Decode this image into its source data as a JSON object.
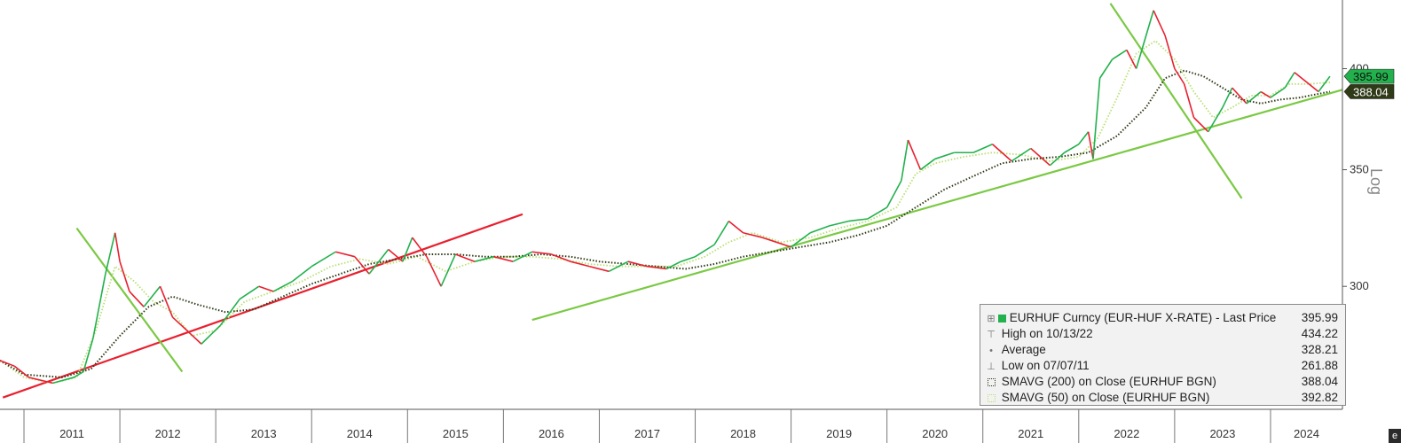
{
  "chart_data": {
    "type": "line",
    "title": "",
    "ticker": "EURHUF Curncy (EUR-HUF X-RATE)",
    "scale": "Log",
    "ylim": [
      255,
      438
    ],
    "y_ticks": [
      300,
      350,
      400
    ],
    "x_axis_years": [
      "2011",
      "2012",
      "2013",
      "2014",
      "2015",
      "2016",
      "2017",
      "2018",
      "2019",
      "2020",
      "2021",
      "2022",
      "2023",
      "2024"
    ],
    "x_range": [
      2010.75,
      2024.75
    ],
    "grid": false,
    "legend_position": "bottom-right",
    "series": [
      {
        "name": "EURHUF Curncy (EUR-HUF X-RATE) - Last Price",
        "color": "#22b14c",
        "down_color": "#e8202f",
        "x": [
          2010.75,
          2010.9,
          2011.05,
          2011.3,
          2011.52,
          2011.62,
          2011.72,
          2011.85,
          2011.95,
          2012.0,
          2012.1,
          2012.25,
          2012.42,
          2012.55,
          2012.7,
          2012.85,
          2013.05,
          2013.25,
          2013.45,
          2013.6,
          2013.8,
          2014.0,
          2014.25,
          2014.45,
          2014.6,
          2014.8,
          2014.95,
          2015.05,
          2015.2,
          2015.35,
          2015.5,
          2015.7,
          2015.9,
          2016.1,
          2016.3,
          2016.5,
          2016.7,
          2016.9,
          2017.1,
          2017.3,
          2017.5,
          2017.7,
          2017.85,
          2018.0,
          2018.2,
          2018.35,
          2018.5,
          2018.7,
          2018.85,
          2019.0,
          2019.2,
          2019.4,
          2019.6,
          2019.8,
          2020.0,
          2020.15,
          2020.22,
          2020.35,
          2020.5,
          2020.7,
          2020.9,
          2021.1,
          2021.3,
          2021.5,
          2021.7,
          2021.85,
          2022.0,
          2022.1,
          2022.15,
          2022.22,
          2022.35,
          2022.5,
          2022.6,
          2022.78,
          2022.9,
          2023.0,
          2023.1,
          2023.2,
          2023.35,
          2023.5,
          2023.6,
          2023.75,
          2023.9,
          2024.0,
          2024.15,
          2024.25,
          2024.4,
          2024.5,
          2024.62
        ],
        "values": [
          272,
          270,
          266,
          264,
          266,
          268,
          280,
          305,
          322,
          310,
          298,
          292,
          300,
          288,
          283,
          278,
          285,
          295,
          300,
          298,
          302,
          308,
          314,
          312,
          305,
          315,
          310,
          320,
          312,
          300,
          313,
          310,
          312,
          310,
          314,
          313,
          310,
          308,
          306,
          310,
          308,
          307,
          310,
          312,
          317,
          327,
          322,
          320,
          318,
          316,
          322,
          325,
          327,
          328,
          333,
          345,
          364,
          350,
          355,
          358,
          358,
          362,
          354,
          360,
          352,
          358,
          362,
          368,
          355,
          395,
          405,
          410,
          400,
          432,
          418,
          400,
          392,
          375,
          368,
          380,
          390,
          382,
          388,
          385,
          390,
          398,
          392,
          388,
          396
        ]
      },
      {
        "name": "SMAVG (200) on Close (EURHUF BGN)",
        "color": "#2f3a17",
        "x": [
          2010.75,
          2011.0,
          2011.4,
          2011.7,
          2012.0,
          2012.3,
          2012.55,
          2012.8,
          2013.1,
          2013.4,
          2013.7,
          2014.0,
          2014.3,
          2014.6,
          2014.9,
          2015.2,
          2015.5,
          2015.8,
          2016.1,
          2016.4,
          2016.7,
          2017.0,
          2017.3,
          2017.6,
          2017.9,
          2018.2,
          2018.5,
          2018.8,
          2019.1,
          2019.4,
          2019.7,
          2020.0,
          2020.3,
          2020.6,
          2020.9,
          2021.2,
          2021.5,
          2021.8,
          2022.1,
          2022.4,
          2022.7,
          2022.9,
          2023.1,
          2023.3,
          2023.5,
          2023.7,
          2023.9,
          2024.1,
          2024.3,
          2024.62
        ],
        "values": [
          272,
          267,
          266,
          269,
          281,
          292,
          296,
          293,
          290,
          291,
          296,
          301,
          305,
          309,
          311,
          313,
          313,
          312,
          312,
          313,
          312,
          310,
          309,
          308,
          307,
          309,
          312,
          314,
          316,
          318,
          321,
          325,
          333,
          341,
          347,
          353,
          355,
          356,
          358,
          366,
          380,
          395,
          399,
          396,
          390,
          384,
          382,
          384,
          385,
          388.04
        ]
      },
      {
        "name": "SMAVG (50) on Close (EURHUF BGN)",
        "color": "#b8e070",
        "x": [
          2010.75,
          2011.0,
          2011.3,
          2011.55,
          2011.75,
          2011.95,
          2012.15,
          2012.35,
          2012.55,
          2012.75,
          2013.0,
          2013.3,
          2013.6,
          2013.9,
          2014.2,
          2014.5,
          2014.8,
          2015.1,
          2015.4,
          2015.7,
          2016.0,
          2016.3,
          2016.6,
          2016.9,
          2017.2,
          2017.5,
          2017.8,
          2018.1,
          2018.35,
          2018.6,
          2018.9,
          2019.2,
          2019.5,
          2019.8,
          2020.1,
          2020.3,
          2020.5,
          2020.8,
          2021.1,
          2021.4,
          2021.7,
          2022.0,
          2022.2,
          2022.4,
          2022.6,
          2022.8,
          2023.0,
          2023.2,
          2023.4,
          2023.6,
          2023.8,
          2024.0,
          2024.2,
          2024.4,
          2024.62
        ],
        "values": [
          272,
          266,
          264,
          266,
          283,
          308,
          302,
          294,
          290,
          281,
          283,
          294,
          298,
          302,
          308,
          311,
          309,
          312,
          306,
          310,
          312,
          312,
          311,
          309,
          308,
          308,
          308,
          312,
          318,
          322,
          318,
          320,
          324,
          327,
          333,
          348,
          353,
          356,
          358,
          357,
          354,
          356,
          365,
          385,
          408,
          415,
          405,
          388,
          375,
          380,
          386,
          386,
          392,
          392,
          392.82
        ]
      }
    ],
    "trendlines": [
      {
        "color": "#e8202f",
        "x": [
          2010.78,
          2016.2
        ],
        "values": [
          259,
          330
        ]
      },
      {
        "color": "#7ac943",
        "x": [
          2011.55,
          2012.65
        ],
        "values": [
          324,
          268
        ]
      },
      {
        "color": "#7ac943",
        "x": [
          2016.3,
          2024.75
        ],
        "values": [
          287,
          389
        ]
      },
      {
        "color": "#7ac943",
        "x": [
          2022.33,
          2023.7
        ],
        "values": [
          436,
          337
        ]
      }
    ],
    "last_labels": [
      {
        "text": "395.99",
        "value": 395.99,
        "bg": "#22b14c",
        "fg": "#111111"
      },
      {
        "text": "388.04",
        "value": 388.04,
        "bg": "#2f3a17",
        "fg": "#ffffff"
      }
    ],
    "legend": {
      "rows": [
        {
          "symbol": "square-green",
          "label": "EURHUF Curncy (EUR-HUF X-RATE) - Last Price",
          "value": "395.99"
        },
        {
          "symbol": "high-marker",
          "label": "High on 10/13/22",
          "value": "434.22"
        },
        {
          "symbol": "avg-marker",
          "label": "Average",
          "value": "328.21"
        },
        {
          "symbol": "low-marker",
          "label": "Low on 07/07/11",
          "value": "261.88"
        },
        {
          "symbol": "dotted-dark",
          "label": "SMAVG (200)  on Close (EURHUF BGN)",
          "value": "388.04"
        },
        {
          "symbol": "dotted-light",
          "label": "SMAVG (50)  on Close (EURHUF BGN)",
          "value": "392.82"
        }
      ]
    }
  },
  "legend_symbols": {
    "high-marker": "⊤",
    "avg-marker": "•",
    "low-marker": "⊥",
    "expand-icon": "⊞"
  }
}
